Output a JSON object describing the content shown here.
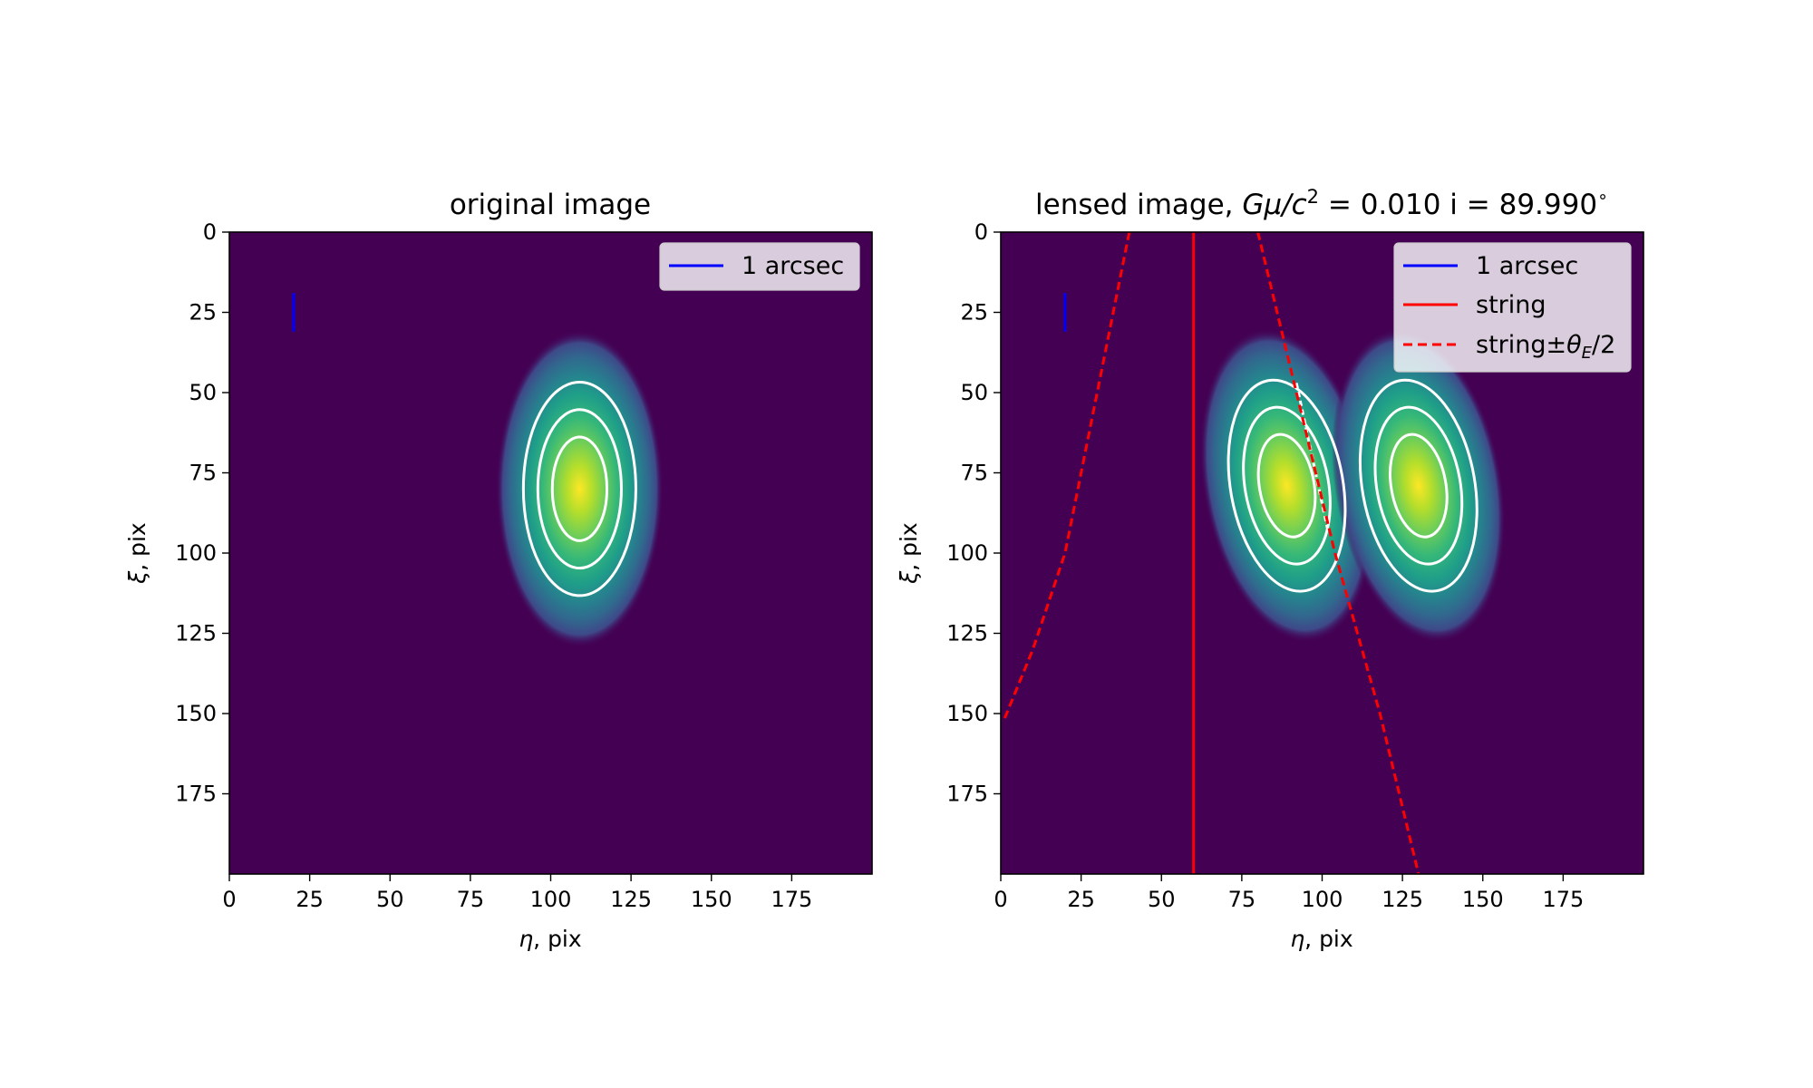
{
  "chart_data": [
    {
      "type": "heatmap",
      "title": "original image",
      "xlabel_symbol": "η",
      "xlabel_unit": ", pix",
      "ylabel_symbol": "ξ",
      "ylabel_unit": ", pix",
      "xlim": [
        0,
        200
      ],
      "ylim": [
        200,
        0
      ],
      "xticks": [
        0,
        25,
        50,
        75,
        100,
        125,
        150,
        175
      ],
      "yticks": [
        0,
        25,
        50,
        75,
        100,
        125,
        150,
        175
      ],
      "colormap": "viridis",
      "background_color": "#440154",
      "grid": false,
      "legend_position": "upper right",
      "legend": [
        {
          "label": "1 arcsec",
          "color": "#0000ff",
          "style": "solid"
        }
      ],
      "sources": [
        {
          "eta": 109,
          "xi": 80,
          "sigma_eta": 10,
          "sigma_xi": 19,
          "tilt_deg": 0
        }
      ],
      "contour_color": "#ffffff",
      "contour_radii_sigma": [
        0.85,
        1.3,
        1.75
      ],
      "scale_bar": {
        "eta": 20,
        "xi_from": 19,
        "xi_to": 31,
        "color": "#0000ff"
      }
    },
    {
      "type": "heatmap",
      "title_prefix": "lensed image, ",
      "title_math_G": "G",
      "title_math_mu": "μ",
      "title_math_c": "/c",
      "title_math_exp": "2",
      "title_suffix": " = 0.010 i = 89.990",
      "title_degree": "∘",
      "xlabel_symbol": "η",
      "xlabel_unit": ", pix",
      "ylabel_symbol": "ξ",
      "ylabel_unit": ", pix",
      "xlim": [
        0,
        200
      ],
      "ylim": [
        200,
        0
      ],
      "xticks": [
        0,
        25,
        50,
        75,
        100,
        125,
        150,
        175
      ],
      "yticks": [
        0,
        25,
        50,
        75,
        100,
        125,
        150,
        175
      ],
      "colormap": "viridis",
      "background_color": "#440154",
      "grid": false,
      "legend_position": "upper right",
      "legend": [
        {
          "label": "1 arcsec",
          "color": "#0000ff",
          "style": "solid"
        },
        {
          "label": "string",
          "color": "#ff0000",
          "style": "solid"
        },
        {
          "label_prefix": "string±",
          "label_theta": "θ",
          "label_sub": "E",
          "label_suffix": "/2",
          "color": "#ff0000",
          "style": "dashed"
        }
      ],
      "sources": [
        {
          "eta": 89,
          "xi": 79,
          "sigma_eta": 10,
          "sigma_xi": 19,
          "tilt_deg": -10,
          "cut_line": true
        },
        {
          "eta": 130,
          "xi": 79,
          "sigma_eta": 10,
          "sigma_xi": 19,
          "tilt_deg": -10
        }
      ],
      "contour_color": "#ffffff",
      "contour_radii_sigma": [
        0.85,
        1.3,
        1.75
      ],
      "scale_bar": {
        "eta": 20,
        "xi_from": 19,
        "xi_to": 31,
        "color": "#0000ff"
      },
      "string_line": {
        "eta": 60,
        "color": "#ff0000"
      },
      "string_bounds": [
        {
          "points": [
            [
              40,
              0
            ],
            [
              30,
              50
            ],
            [
              20,
              100
            ],
            [
              10,
              130
            ],
            [
              1,
              152
            ]
          ]
        },
        {
          "points": [
            [
              80,
              0
            ],
            [
              92,
              50
            ],
            [
              104,
              100
            ],
            [
              118,
              150
            ],
            [
              130,
              200
            ]
          ]
        }
      ]
    }
  ]
}
